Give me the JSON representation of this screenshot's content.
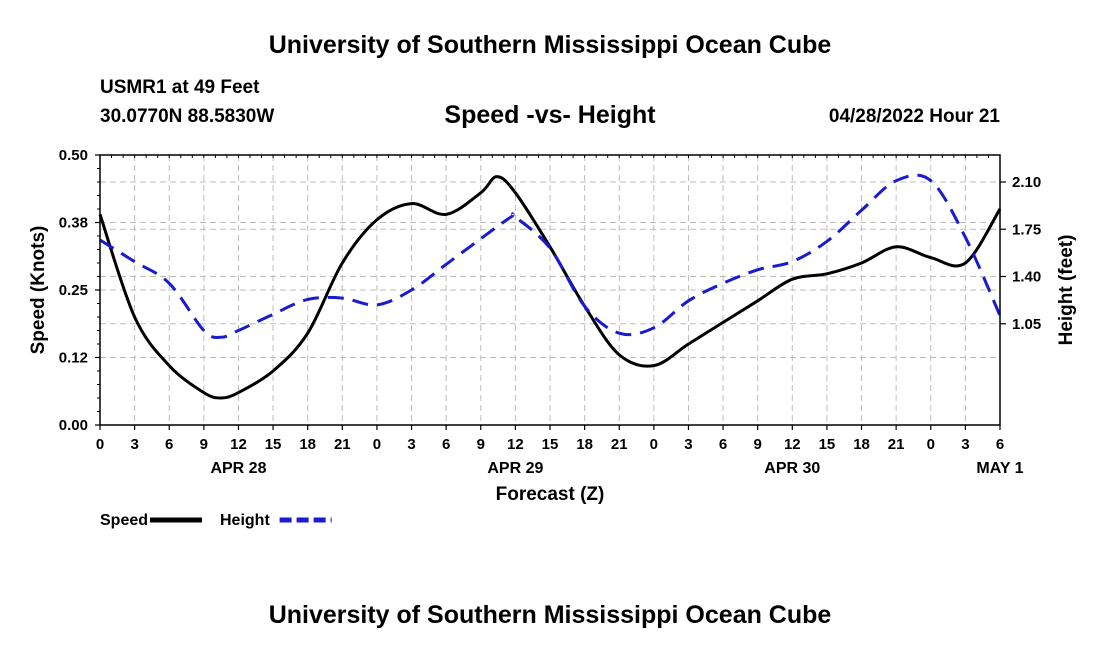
{
  "header": {
    "title": "University of Southern Mississippi Ocean Cube",
    "station": "USMR1 at 49 Feet",
    "coords": "30.0770N  88.5830W",
    "subtitle": "Speed -vs- Height",
    "datetime": "04/28/2022 Hour 21"
  },
  "footer": {
    "title": "University of Southern Mississippi Ocean Cube"
  },
  "chart_data": {
    "type": "line",
    "title": "Speed -vs- Height",
    "xlabel": "Forecast (Z)",
    "ylabel": "Speed (Knots)",
    "y2label": "Height (feet)",
    "x_ticks": [
      "0",
      "3",
      "6",
      "9",
      "12",
      "15",
      "18",
      "21",
      "0",
      "3",
      "6",
      "9",
      "12",
      "15",
      "18",
      "21",
      "0",
      "3",
      "6",
      "9",
      "12",
      "15",
      "18",
      "21",
      "0",
      "3",
      "6"
    ],
    "date_labels": [
      {
        "label": "APR 28",
        "hour": 12
      },
      {
        "label": "APR 29",
        "hour": 36
      },
      {
        "label": "APR 30",
        "hour": 60
      },
      {
        "label": "MAY 1",
        "hour": 78
      }
    ],
    "xlim": [
      0,
      78
    ],
    "ylim": [
      0,
      0.5
    ],
    "y_ticks": [
      "0.00",
      "0.12",
      "0.25",
      "0.38",
      "0.50"
    ],
    "y_tick_values": [
      0,
      0.125,
      0.25,
      0.375,
      0.5
    ],
    "y2lim": [
      0.3,
      2.3
    ],
    "y2_ticks": [
      "1.05",
      "1.40",
      "1.75",
      "2.10"
    ],
    "y2_tick_values": [
      1.05,
      1.4,
      1.75,
      2.1
    ],
    "series": [
      {
        "name": "Speed",
        "axis": "left",
        "color": "#000000",
        "style": "solid",
        "x": [
          0,
          3,
          6,
          9,
          10.5,
          12,
          15,
          18,
          21,
          24,
          27,
          30,
          33,
          34.4,
          36,
          39,
          42,
          45,
          48,
          51,
          54,
          57,
          60,
          63,
          66,
          69,
          72,
          75,
          78
        ],
        "y": [
          0.39,
          0.2,
          0.11,
          0.06,
          0.05,
          0.06,
          0.1,
          0.17,
          0.3,
          0.38,
          0.41,
          0.39,
          0.43,
          0.46,
          0.43,
          0.33,
          0.22,
          0.13,
          0.11,
          0.15,
          0.19,
          0.23,
          0.27,
          0.28,
          0.3,
          0.33,
          0.31,
          0.3,
          0.4
        ]
      },
      {
        "name": "Height",
        "axis": "right",
        "color": "#1a1ad0",
        "style": "dashed",
        "x": [
          0,
          3,
          6,
          9,
          10.5,
          12,
          15,
          18,
          21,
          24,
          27,
          30,
          33,
          35.6,
          36,
          39,
          42,
          45,
          48,
          51,
          54,
          57,
          60,
          63,
          66,
          69,
          72,
          75,
          78
        ],
        "y": [
          1.67,
          1.51,
          1.35,
          1.0,
          0.95,
          1.0,
          1.12,
          1.23,
          1.24,
          1.19,
          1.3,
          1.49,
          1.68,
          1.84,
          1.84,
          1.61,
          1.18,
          0.98,
          1.02,
          1.22,
          1.35,
          1.45,
          1.51,
          1.66,
          1.89,
          2.11,
          2.11,
          1.69,
          1.11
        ]
      }
    ],
    "legend": [
      {
        "label": "Speed",
        "color": "#000000",
        "style": "solid"
      },
      {
        "label": "Height",
        "color": "#1a1ad0",
        "style": "dashed"
      }
    ],
    "grid": true
  }
}
